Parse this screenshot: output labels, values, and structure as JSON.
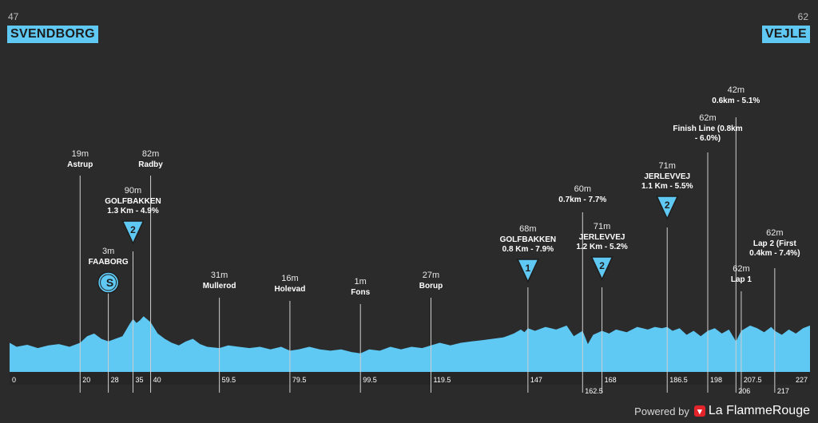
{
  "header": {
    "start": {
      "altitude": "47",
      "name": "SVENDBORG"
    },
    "finish": {
      "altitude": "62",
      "name": "VEJLE"
    }
  },
  "colors": {
    "profile": "#5fc8f3",
    "background": "#2b2b2b",
    "marker": "#5fc8f3"
  },
  "footer": {
    "powered": "Powered by",
    "brand": "La FlammeRouge",
    "brand_icon": "flag-icon"
  },
  "chart_data": {
    "type": "area",
    "xlim": [
      0,
      227
    ],
    "ylim": [
      0,
      200
    ],
    "profile": [
      [
        0,
        44
      ],
      [
        2,
        38
      ],
      [
        5,
        41
      ],
      [
        8,
        36
      ],
      [
        11,
        40
      ],
      [
        14,
        42
      ],
      [
        17,
        38
      ],
      [
        20,
        44
      ],
      [
        22,
        54
      ],
      [
        24,
        58
      ],
      [
        26,
        50
      ],
      [
        28,
        46
      ],
      [
        30,
        50
      ],
      [
        32,
        54
      ],
      [
        34,
        72
      ],
      [
        35,
        80
      ],
      [
        36,
        74
      ],
      [
        37,
        78
      ],
      [
        38,
        84
      ],
      [
        40,
        75
      ],
      [
        42,
        58
      ],
      [
        44,
        50
      ],
      [
        46,
        44
      ],
      [
        48,
        40
      ],
      [
        50,
        46
      ],
      [
        52,
        50
      ],
      [
        54,
        42
      ],
      [
        56,
        38
      ],
      [
        59.5,
        36
      ],
      [
        62,
        40
      ],
      [
        65,
        38
      ],
      [
        68,
        36
      ],
      [
        71,
        38
      ],
      [
        74,
        34
      ],
      [
        77,
        38
      ],
      [
        79.5,
        32
      ],
      [
        82,
        34
      ],
      [
        85,
        38
      ],
      [
        88,
        34
      ],
      [
        91,
        32
      ],
      [
        94,
        34
      ],
      [
        97,
        30
      ],
      [
        99.5,
        28
      ],
      [
        102,
        34
      ],
      [
        105,
        32
      ],
      [
        108,
        38
      ],
      [
        111,
        34
      ],
      [
        114,
        38
      ],
      [
        117,
        36
      ],
      [
        119.5,
        40
      ],
      [
        122,
        44
      ],
      [
        125,
        40
      ],
      [
        128,
        44
      ],
      [
        131,
        46
      ],
      [
        134,
        48
      ],
      [
        137,
        50
      ],
      [
        140,
        52
      ],
      [
        143,
        58
      ],
      [
        145,
        64
      ],
      [
        146,
        60
      ],
      [
        147,
        66
      ],
      [
        149,
        62
      ],
      [
        152,
        68
      ],
      [
        155,
        64
      ],
      [
        158,
        70
      ],
      [
        160,
        54
      ],
      [
        162.5,
        62
      ],
      [
        164,
        42
      ],
      [
        165.5,
        56
      ],
      [
        168,
        62
      ],
      [
        170,
        58
      ],
      [
        172,
        64
      ],
      [
        175,
        60
      ],
      [
        178,
        68
      ],
      [
        181,
        64
      ],
      [
        183,
        68
      ],
      [
        185,
        66
      ],
      [
        186.5,
        68
      ],
      [
        188,
        62
      ],
      [
        190,
        66
      ],
      [
        192,
        56
      ],
      [
        194,
        62
      ],
      [
        196,
        54
      ],
      [
        198,
        62
      ],
      [
        200,
        66
      ],
      [
        202,
        58
      ],
      [
        204,
        64
      ],
      [
        206,
        46
      ],
      [
        207.5,
        62
      ],
      [
        210,
        70
      ],
      [
        212,
        66
      ],
      [
        214,
        60
      ],
      [
        216,
        68
      ],
      [
        217,
        62
      ],
      [
        219,
        56
      ],
      [
        221,
        64
      ],
      [
        223,
        58
      ],
      [
        225,
        66
      ],
      [
        227,
        70
      ]
    ],
    "x_ticks": [
      {
        "x": 0,
        "label": "0",
        "row": 0
      },
      {
        "x": 20,
        "label": "20",
        "row": 0
      },
      {
        "x": 28,
        "label": "28",
        "row": 0
      },
      {
        "x": 35,
        "label": "35",
        "row": 0
      },
      {
        "x": 40,
        "label": "40",
        "row": 0
      },
      {
        "x": 59.5,
        "label": "59.5",
        "row": 0
      },
      {
        "x": 79.5,
        "label": "79.5",
        "row": 0
      },
      {
        "x": 99.5,
        "label": "99.5",
        "row": 0
      },
      {
        "x": 119.5,
        "label": "119.5",
        "row": 0
      },
      {
        "x": 147,
        "label": "147",
        "row": 0
      },
      {
        "x": 162.5,
        "label": "162.5",
        "row": 1
      },
      {
        "x": 168,
        "label": "168",
        "row": 0
      },
      {
        "x": 186.5,
        "label": "186.5",
        "row": 0
      },
      {
        "x": 198,
        "label": "198",
        "row": 0
      },
      {
        "x": 206,
        "label": "206",
        "row": 1
      },
      {
        "x": 207.5,
        "label": "207.5",
        "row": 0
      },
      {
        "x": 217,
        "label": "217",
        "row": 1
      },
      {
        "x": 227,
        "label": "227",
        "row": 0
      }
    ],
    "points": [
      {
        "x": 20,
        "alt": "19m",
        "name": "Astrup",
        "marker": "none"
      },
      {
        "x": 28,
        "alt": "3m",
        "name": "FAABORG",
        "marker": "sprint"
      },
      {
        "x": 35,
        "alt": "90m",
        "name": "GOLFBAKKEN",
        "detail": "1.3 Km - 4.9%",
        "marker": "kom",
        "cat": "2"
      },
      {
        "x": 40,
        "alt": "82m",
        "name": "Radby",
        "marker": "none"
      },
      {
        "x": 59.5,
        "alt": "31m",
        "name": "Mullerod",
        "marker": "none"
      },
      {
        "x": 79.5,
        "alt": "16m",
        "name": "Holevad",
        "marker": "none"
      },
      {
        "x": 99.5,
        "alt": "1m",
        "name": "Fons",
        "marker": "none"
      },
      {
        "x": 119.5,
        "alt": "27m",
        "name": "Borup",
        "marker": "none"
      },
      {
        "x": 147,
        "alt": "68m",
        "name": "GOLFBAKKEN",
        "detail": "0.8 Km - 7.9%",
        "marker": "kom",
        "cat": "1"
      },
      {
        "x": 162.5,
        "alt": "60m",
        "detail": "0.7km - 7.7%",
        "marker": "none"
      },
      {
        "x": 168,
        "alt": "71m",
        "name": "JERLEVVEJ",
        "detail": "1.2 Km - 5.2%",
        "marker": "kom",
        "cat": "2"
      },
      {
        "x": 186.5,
        "alt": "71m",
        "name": "JERLEVVEJ",
        "detail": "1.1 Km - 5.5%",
        "marker": "kom",
        "cat": "2"
      },
      {
        "x": 198,
        "alt": "62m",
        "name": "Finish Line (0.8km",
        "name2": "- 6.0%)",
        "marker": "none"
      },
      {
        "x": 206,
        "alt": "42m",
        "detail": "0.6km - 5.1%",
        "marker": "none"
      },
      {
        "x": 207.5,
        "alt": "62m",
        "name": "Lap 1",
        "marker": "none"
      },
      {
        "x": 217,
        "alt": "62m",
        "name": "Lap 2 (First",
        "name2": "0.4km - 7.4%)",
        "marker": "none"
      }
    ]
  }
}
